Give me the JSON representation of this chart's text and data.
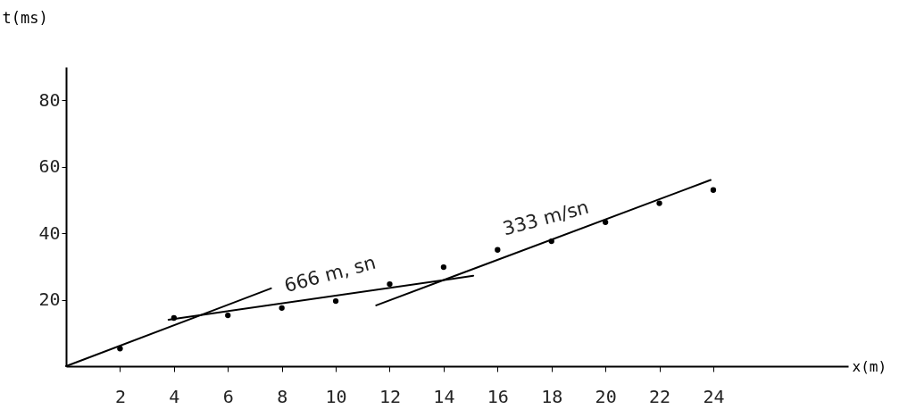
{
  "chart_data": {
    "type": "scatter",
    "xlabel": "x(m)",
    "ylabel": "t(ms)",
    "xlim": [
      0,
      29
    ],
    "ylim": [
      0,
      90
    ],
    "xticks": [
      2,
      4,
      6,
      8,
      10,
      12,
      14,
      16,
      18,
      20,
      22,
      24
    ],
    "yticks": [
      20,
      40,
      60,
      80
    ],
    "grid": false,
    "marker": "circle",
    "line_style": "solid",
    "series": [
      {
        "color": "#000000",
        "x": [
          2,
          4,
          6,
          8,
          10,
          12,
          14,
          16,
          18,
          20,
          22,
          24
        ],
        "values": [
          5.3,
          14.5,
          15.3,
          17.5,
          19.6,
          24.7,
          29.8,
          35,
          37.6,
          43.3,
          49,
          53
        ]
      },
      {
        "type": "line",
        "marker": "none",
        "color": "#000000",
        "x": [
          0,
          7.6
        ],
        "values": [
          0,
          23.4
        ]
      },
      {
        "type": "line",
        "marker": "none",
        "color": "#000000",
        "x": [
          3.8,
          15.1
        ],
        "values": [
          14,
          27.2
        ]
      },
      {
        "type": "line",
        "marker": "none",
        "color": "#000000",
        "x": [
          11.5,
          23.9
        ],
        "values": [
          18.3,
          56
        ]
      }
    ],
    "annotations": [
      {
        "text": "666 m, sn",
        "x": 10,
        "y": 21.2
      },
      {
        "text": "333 m/sn",
        "x": 18,
        "y": 38.1
      }
    ]
  }
}
